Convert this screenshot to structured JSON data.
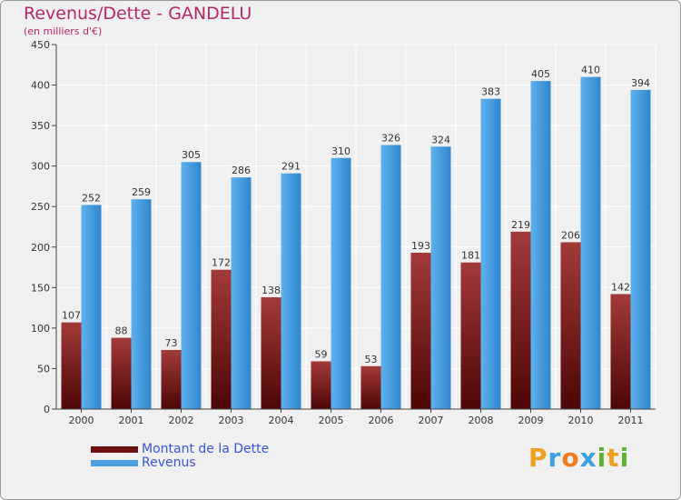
{
  "header": {
    "title": "Revenus/Dette - GANDELU",
    "subtitle": "(en milliers d'€)"
  },
  "chart_data": {
    "type": "bar",
    "categories": [
      "2000",
      "2001",
      "2002",
      "2003",
      "2004",
      "2005",
      "2006",
      "2007",
      "2008",
      "2009",
      "2010",
      "2011"
    ],
    "series": [
      {
        "name": "Montant de la Dette",
        "values": [
          107,
          88,
          73,
          172,
          138,
          59,
          53,
          193,
          181,
          219,
          206,
          142
        ],
        "color": "#7a1a1a"
      },
      {
        "name": "Revenus",
        "values": [
          252,
          259,
          305,
          286,
          291,
          310,
          326,
          324,
          383,
          405,
          410,
          394
        ],
        "color": "#4a9fe0"
      }
    ],
    "ylim": [
      0,
      450
    ],
    "yticks": [
      0,
      50,
      100,
      150,
      200,
      250,
      300,
      350,
      400,
      450
    ],
    "grid": true,
    "legend": "bottom-left"
  },
  "logo": {
    "letters": [
      "P",
      "r",
      "o",
      "x",
      "i",
      "t",
      "i"
    ],
    "colors": [
      "#f0a020",
      "#3aa0e0",
      "#f07a20",
      "#3aa0e0",
      "#60b030",
      "#f0a020",
      "#60b030"
    ]
  }
}
